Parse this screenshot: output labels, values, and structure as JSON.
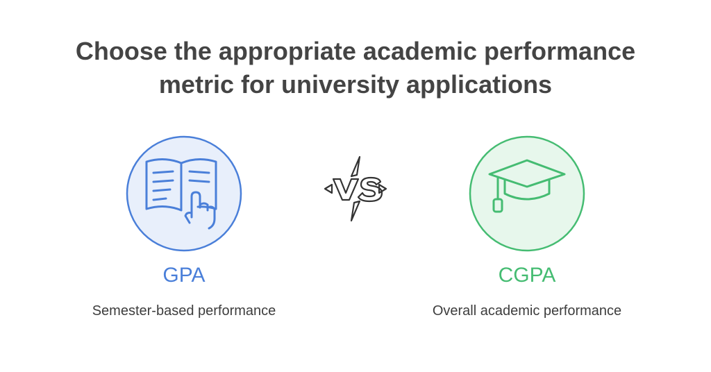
{
  "title": {
    "line1": "Choose the appropriate academic performance",
    "line2": "metric for university applications"
  },
  "options": [
    {
      "label": "GPA",
      "description": "Semester-based performance",
      "icon": "open-book-pointer-icon",
      "color": "#4a7fd9",
      "fill": "#e8effb"
    },
    {
      "label": "CGPA",
      "description": "Overall academic performance",
      "icon": "graduation-cap-icon",
      "color": "#45bc72",
      "fill": "#e7f7ec"
    }
  ],
  "separator": {
    "icon": "versus-icon"
  }
}
